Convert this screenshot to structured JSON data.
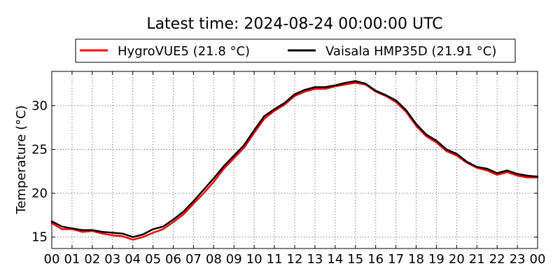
{
  "chart_data": {
    "type": "line",
    "title": "Latest time: 2024-08-24 00:00:00 UTC",
    "xlabel": "",
    "ylabel": "Temperature (°C)",
    "xlim": [
      0,
      24
    ],
    "ylim": [
      13.7,
      33.9
    ],
    "x_tick_labels": [
      "00",
      "01",
      "02",
      "03",
      "04",
      "05",
      "06",
      "07",
      "08",
      "09",
      "10",
      "11",
      "12",
      "13",
      "14",
      "15",
      "16",
      "17",
      "18",
      "19",
      "20",
      "21",
      "22",
      "23",
      "00"
    ],
    "x_tick_values": [
      0,
      1,
      2,
      3,
      4,
      5,
      6,
      7,
      8,
      9,
      10,
      11,
      12,
      13,
      14,
      15,
      16,
      17,
      18,
      19,
      20,
      21,
      22,
      23,
      24
    ],
    "y_ticks": [
      15,
      20,
      25,
      30
    ],
    "y_tick_labels": [
      "15",
      "20",
      "25",
      "30"
    ],
    "grid": true,
    "legend_position": "top-center-outside",
    "x": [
      0,
      0.5,
      1,
      1.5,
      2,
      2.5,
      3,
      3.5,
      4,
      4.5,
      5,
      5.5,
      6,
      6.5,
      7,
      7.5,
      8,
      8.5,
      9,
      9.5,
      10,
      10.5,
      11,
      11.5,
      12,
      12.5,
      13,
      13.5,
      14,
      14.5,
      15,
      15.5,
      16,
      16.5,
      17,
      17.5,
      18,
      18.5,
      19,
      19.5,
      20,
      20.5,
      21,
      21.5,
      22,
      22.5,
      23,
      23.5,
      24
    ],
    "series": [
      {
        "name": "HygroVUE5 (21.8 °C)",
        "color": "#ff0000",
        "values": [
          16.6,
          15.9,
          15.9,
          15.6,
          15.7,
          15.4,
          15.2,
          15.1,
          14.7,
          15.0,
          15.5,
          15.9,
          16.7,
          17.6,
          18.8,
          20.0,
          21.3,
          22.8,
          24.0,
          25.2,
          26.9,
          28.5,
          29.4,
          30.1,
          31.1,
          31.6,
          31.9,
          31.9,
          32.2,
          32.4,
          32.6,
          32.4,
          31.6,
          31.1,
          30.4,
          29.3,
          27.7,
          26.5,
          25.8,
          24.8,
          24.3,
          23.5,
          22.9,
          22.6,
          22.1,
          22.4,
          22.0,
          21.8,
          21.8
        ]
      },
      {
        "name": "Vaisala HMP35D (21.91 °C)",
        "color": "#000000",
        "values": [
          16.8,
          16.2,
          16.0,
          15.8,
          15.8,
          15.6,
          15.5,
          15.4,
          15.0,
          15.3,
          15.9,
          16.2,
          17.0,
          17.9,
          19.1,
          20.4,
          21.7,
          23.1,
          24.3,
          25.5,
          27.2,
          28.8,
          29.6,
          30.3,
          31.3,
          31.8,
          32.1,
          32.1,
          32.3,
          32.6,
          32.8,
          32.5,
          31.7,
          31.2,
          30.6,
          29.5,
          27.9,
          26.7,
          26.0,
          25.0,
          24.5,
          23.6,
          23.0,
          22.8,
          22.3,
          22.6,
          22.2,
          22.0,
          21.9
        ]
      }
    ]
  }
}
